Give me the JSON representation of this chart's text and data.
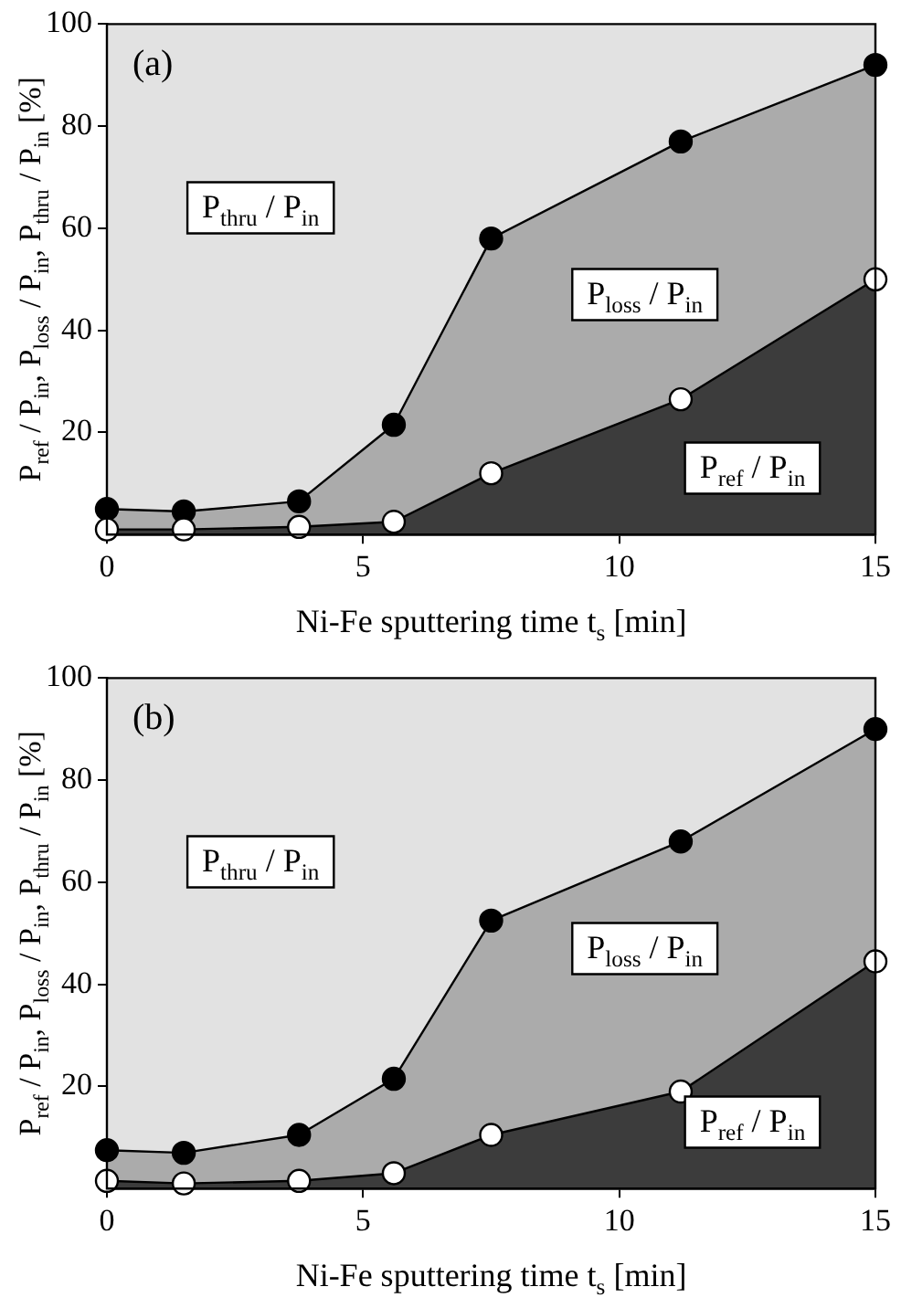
{
  "chart_data": [
    {
      "type": "area",
      "title": "(a)",
      "xlabel": "Ni-Fe sputtering time t$_{s}$ [min]",
      "ylabel": "P$_{ref}$ / P$_{in}$, P$_{loss}$ / P$_{in}$, P$_{thru}$ / P$_{in}$ [%]",
      "x": [
        0,
        1.5,
        3.75,
        5.6,
        7.5,
        11.2,
        15
      ],
      "stacked": true,
      "xlim": [
        0,
        15
      ],
      "xticks": [
        0,
        5,
        10,
        15
      ],
      "ylim": [
        0,
        100
      ],
      "yticks": [
        20,
        40,
        60,
        80,
        100
      ],
      "grid": false,
      "legend": false,
      "series": [
        {
          "color": "#3c3c3c",
          "marker": "circle",
          "values": [
            1,
            1,
            1.5,
            2.5,
            12,
            26.5,
            50
          ]
        },
        {
          "color": "#ababab",
          "marker": "circle",
          "values": [
            4,
            3.5,
            5,
            19,
            46,
            50.5,
            42
          ]
        },
        {
          "color": "#e2e2e2",
          "marker": "none",
          "values": [
            95,
            95.5,
            93.5,
            78.5,
            42,
            23,
            8
          ]
        }
      ],
      "annotations": [
        "P$_{thru}$ / P$_{in}$",
        "P$_{loss}$ / P$_{in}$",
        "P$_{ref}$ / P$_{in}$"
      ]
    },
    {
      "type": "area",
      "title": "(b)",
      "xlabel": "Ni-Fe sputtering time t$_{s}$ [min]",
      "ylabel": "P$_{ref}$ / P$_{in}$, P$_{loss}$ / P$_{in}$, P$_{thru}$ / P$_{in}$ [%]",
      "x": [
        0,
        1.5,
        3.75,
        5.6,
        7.5,
        11.2,
        15
      ],
      "stacked": true,
      "xlim": [
        0,
        15
      ],
      "xticks": [
        0,
        5,
        10,
        15
      ],
      "ylim": [
        0,
        100
      ],
      "yticks": [
        20,
        40,
        60,
        80,
        100
      ],
      "grid": false,
      "legend": false,
      "series": [
        {
          "color": "#3c3c3c",
          "marker": "circle",
          "values": [
            1.5,
            1,
            1.5,
            3,
            10.5,
            19,
            44.5
          ]
        },
        {
          "color": "#ababab",
          "marker": "circle",
          "values": [
            6,
            6,
            9,
            18.5,
            42,
            49,
            45.5
          ]
        },
        {
          "color": "#e2e2e2",
          "marker": "none",
          "values": [
            92.5,
            93,
            89.5,
            78.5,
            47.5,
            32,
            10
          ]
        }
      ],
      "annotations": [
        "P$_{thru}$ / P$_{in}$",
        "P$_{loss}$ / P$_{in}$",
        "P$_{ref}$ / P$_{in}$"
      ]
    }
  ]
}
